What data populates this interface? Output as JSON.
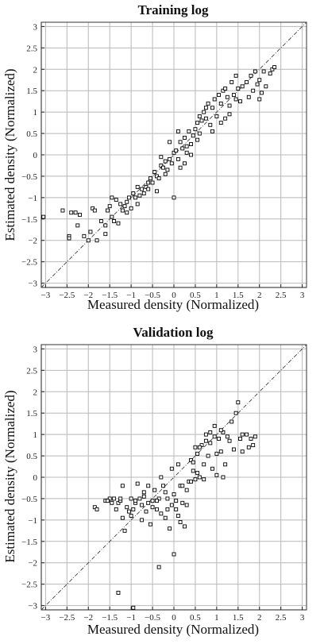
{
  "chart_data": [
    {
      "type": "scatter",
      "title": "Training log",
      "xlabel": "Measured density (Normalized)",
      "ylabel": "Estimated density (Normalized)",
      "xlim": [
        -3.1,
        3.1
      ],
      "ylim": [
        -3.1,
        3.1
      ],
      "xticks": [
        -3,
        -2.5,
        -2,
        -1.5,
        -1,
        -0.5,
        0,
        0.5,
        1,
        1.5,
        2,
        2.5,
        3
      ],
      "yticks": [
        -3,
        -2.5,
        -2,
        -1.5,
        -1,
        -0.5,
        0,
        0.5,
        1,
        1.5,
        2,
        2.5,
        3
      ],
      "x_tick_labels": [
        "−3",
        "−2.5",
        "−2",
        "−1.5",
        "−1",
        "−0.5",
        "0",
        "0.5",
        "1",
        "1.5",
        "2",
        "2.5",
        "3"
      ],
      "y_tick_labels": [
        "−3",
        "−2.5",
        "−2",
        "−1.5",
        "−1",
        "−0.5",
        "0",
        "0.5",
        "1",
        "1.5",
        "2",
        "2.5",
        "3"
      ],
      "grid": true,
      "reference_line": "y = x",
      "marker": "open-square",
      "points": [
        [
          -3.05,
          -1.45
        ],
        [
          -2.6,
          -1.3
        ],
        [
          -2.45,
          -1.9
        ],
        [
          -2.45,
          -1.95
        ],
        [
          -2.3,
          -1.35
        ],
        [
          -2.2,
          -1.4
        ],
        [
          -2.25,
          -1.65
        ],
        [
          -2.1,
          -1.9
        ],
        [
          -2.0,
          -2.0
        ],
        [
          -1.95,
          -1.8
        ],
        [
          -1.9,
          -1.25
        ],
        [
          -1.85,
          -1.3
        ],
        [
          -1.8,
          -2.0
        ],
        [
          -1.7,
          -1.55
        ],
        [
          -1.6,
          -1.85
        ],
        [
          -1.55,
          -1.3
        ],
        [
          -1.5,
          -1.2
        ],
        [
          -1.45,
          -1.45
        ],
        [
          -1.4,
          -1.55
        ],
        [
          -1.35,
          -1.05
        ],
        [
          -1.3,
          -1.6
        ],
        [
          -1.25,
          -1.15
        ],
        [
          -1.2,
          -1.3
        ],
        [
          -1.15,
          -1.2
        ],
        [
          -1.1,
          -1.1
        ],
        [
          -1.05,
          -1.0
        ],
        [
          -1.0,
          -1.25
        ],
        [
          -0.95,
          -0.9
        ],
        [
          -0.9,
          -1.0
        ],
        [
          -0.85,
          -0.75
        ],
        [
          -0.8,
          -0.95
        ],
        [
          -0.75,
          -0.8
        ],
        [
          -0.7,
          -0.9
        ],
        [
          -0.65,
          -0.75
        ],
        [
          -0.6,
          -0.8
        ],
        [
          -0.55,
          -0.55
        ],
        [
          -0.5,
          -0.65
        ],
        [
          -0.45,
          -0.4
        ],
        [
          -0.4,
          -0.5
        ],
        [
          -0.35,
          -0.55
        ],
        [
          -0.3,
          -0.25
        ],
        [
          -0.25,
          -0.3
        ],
        [
          -0.2,
          -0.45
        ],
        [
          -0.15,
          -0.35
        ],
        [
          -0.1,
          -0.1
        ],
        [
          -0.05,
          -0.2
        ],
        [
          0.0,
          -1.0
        ],
        [
          0.0,
          0.05
        ],
        [
          0.05,
          0.1
        ],
        [
          0.1,
          -0.1
        ],
        [
          0.15,
          -0.3
        ],
        [
          0.15,
          0.3
        ],
        [
          0.2,
          0.15
        ],
        [
          0.25,
          0.4
        ],
        [
          0.3,
          0.2
        ],
        [
          0.35,
          0.55
        ],
        [
          0.4,
          0.25
        ],
        [
          0.45,
          0.45
        ],
        [
          0.5,
          0.6
        ],
        [
          0.55,
          0.75
        ],
        [
          0.6,
          0.5
        ],
        [
          0.65,
          0.8
        ],
        [
          0.7,
          1.0
        ],
        [
          0.75,
          0.85
        ],
        [
          0.8,
          1.2
        ],
        [
          0.85,
          0.7
        ],
        [
          0.9,
          1.1
        ],
        [
          0.95,
          1.3
        ],
        [
          1.0,
          0.9
        ],
        [
          1.05,
          1.4
        ],
        [
          1.1,
          1.2
        ],
        [
          1.15,
          1.5
        ],
        [
          1.2,
          0.85
        ],
        [
          1.25,
          1.35
        ],
        [
          1.3,
          1.15
        ],
        [
          1.35,
          1.7
        ],
        [
          1.4,
          1.4
        ],
        [
          1.45,
          1.85
        ],
        [
          1.5,
          1.55
        ],
        [
          1.6,
          1.6
        ],
        [
          1.7,
          1.7
        ],
        [
          1.75,
          1.35
        ],
        [
          1.8,
          1.85
        ],
        [
          1.85,
          1.5
        ],
        [
          1.9,
          1.95
        ],
        [
          1.95,
          1.65
        ],
        [
          2.0,
          1.75
        ],
        [
          2.05,
          1.45
        ],
        [
          2.1,
          1.95
        ],
        [
          2.15,
          1.6
        ],
        [
          2.25,
          1.9
        ],
        [
          2.3,
          2.0
        ],
        [
          2.35,
          2.05
        ],
        [
          2.0,
          1.3
        ],
        [
          1.3,
          0.95
        ],
        [
          0.9,
          0.55
        ],
        [
          0.6,
          0.9
        ],
        [
          0.3,
          0.05
        ],
        [
          -0.2,
          -0.15
        ],
        [
          -0.6,
          -0.65
        ],
        [
          -0.85,
          -1.15
        ],
        [
          -1.1,
          -1.35
        ],
        [
          -1.6,
          -1.65
        ],
        [
          -2.4,
          -1.35
        ],
        [
          -0.3,
          -0.05
        ],
        [
          0.1,
          0.55
        ],
        [
          0.4,
          0.0
        ],
        [
          0.75,
          1.1
        ],
        [
          1.1,
          0.75
        ],
        [
          1.55,
          1.25
        ],
        [
          -0.4,
          -0.85
        ],
        [
          -0.1,
          0.3
        ],
        [
          0.25,
          -0.2
        ],
        [
          0.55,
          0.35
        ],
        [
          1.2,
          1.55
        ],
        [
          1.45,
          1.3
        ],
        [
          -1.45,
          -1.0
        ]
      ]
    },
    {
      "type": "scatter",
      "title": "Validation log",
      "xlabel": "Measured density (Normalized)",
      "ylabel": "Estimated density (Normalized)",
      "xlim": [
        -3.1,
        3.1
      ],
      "ylim": [
        -3.1,
        3.1
      ],
      "xticks": [
        -3,
        -2.5,
        -2,
        -1.5,
        -1,
        -0.5,
        0,
        0.5,
        1,
        1.5,
        2,
        2.5,
        3
      ],
      "yticks": [
        -3,
        -2.5,
        -2,
        -1.5,
        -1,
        -0.5,
        0,
        0.5,
        1,
        1.5,
        2,
        2.5,
        3
      ],
      "x_tick_labels": [
        "−3",
        "−2.5",
        "−2",
        "−1.5",
        "−1",
        "−0.5",
        "0",
        "0.5",
        "1",
        "1.5",
        "2",
        "2.5",
        "3"
      ],
      "y_tick_labels": [
        "−3",
        "−2.5",
        "−2",
        "−1.5",
        "−1",
        "−0.5",
        "0",
        "0.5",
        "1",
        "1.5",
        "2",
        "2.5",
        "3"
      ],
      "grid": true,
      "reference_line": "y = x",
      "marker": "open-square",
      "points": [
        [
          -1.85,
          -0.7
        ],
        [
          -1.8,
          -0.75
        ],
        [
          -1.6,
          -0.55
        ],
        [
          -1.5,
          -0.5
        ],
        [
          -1.45,
          -0.6
        ],
        [
          -1.4,
          -0.5
        ],
        [
          -1.35,
          -0.75
        ],
        [
          -1.3,
          -0.6
        ],
        [
          -1.25,
          -0.55
        ],
        [
          -1.2,
          -0.2
        ],
        [
          -1.2,
          -0.95
        ],
        [
          -1.15,
          -1.25
        ],
        [
          -1.1,
          -0.7
        ],
        [
          -1.05,
          -0.8
        ],
        [
          -1.0,
          -0.5
        ],
        [
          -0.95,
          -0.75
        ],
        [
          -0.9,
          -0.6
        ],
        [
          -0.85,
          -0.15
        ],
        [
          -0.8,
          -0.5
        ],
        [
          -0.75,
          -1.0
        ],
        [
          -0.7,
          -0.45
        ],
        [
          -0.65,
          -0.8
        ],
        [
          -0.6,
          -0.6
        ],
        [
          -0.55,
          -1.1
        ],
        [
          -0.5,
          -0.55
        ],
        [
          -0.45,
          -0.3
        ],
        [
          -0.4,
          -0.75
        ],
        [
          -0.35,
          -0.5
        ],
        [
          -0.3,
          -0.85
        ],
        [
          -0.25,
          -0.2
        ],
        [
          -0.2,
          -0.95
        ],
        [
          -0.15,
          -0.5
        ],
        [
          -0.1,
          -1.2
        ],
        [
          -0.05,
          -0.65
        ],
        [
          0.0,
          -0.4
        ],
        [
          0.05,
          -0.75
        ],
        [
          0.1,
          -0.9
        ],
        [
          0.15,
          -0.2
        ],
        [
          0.2,
          -0.6
        ],
        [
          0.25,
          -1.15
        ],
        [
          0.3,
          -0.3
        ],
        [
          0.35,
          -0.1
        ],
        [
          0.4,
          0.4
        ],
        [
          0.45,
          0.15
        ],
        [
          0.5,
          -0.05
        ],
        [
          0.55,
          0.55
        ],
        [
          0.6,
          0.0
        ],
        [
          0.65,
          0.75
        ],
        [
          0.7,
          0.3
        ],
        [
          0.75,
          1.0
        ],
        [
          0.8,
          0.5
        ],
        [
          0.85,
          0.8
        ],
        [
          0.9,
          0.2
        ],
        [
          0.95,
          1.2
        ],
        [
          1.0,
          0.05
        ],
        [
          1.05,
          0.9
        ],
        [
          1.1,
          0.6
        ],
        [
          1.15,
          1.05
        ],
        [
          1.2,
          0.3
        ],
        [
          1.3,
          0.85
        ],
        [
          1.35,
          1.3
        ],
        [
          1.45,
          1.5
        ],
        [
          1.5,
          1.75
        ],
        [
          1.55,
          0.9
        ],
        [
          1.6,
          0.6
        ],
        [
          1.7,
          1.0
        ],
        [
          1.75,
          0.7
        ],
        [
          1.8,
          0.9
        ],
        [
          1.85,
          0.75
        ],
        [
          1.9,
          0.95
        ],
        [
          -1.3,
          -2.7
        ],
        [
          -0.95,
          -3.05
        ],
        [
          -0.35,
          -2.1
        ],
        [
          0.0,
          -1.8
        ],
        [
          -0.3,
          -0.0
        ],
        [
          -0.05,
          0.2
        ],
        [
          0.1,
          0.3
        ],
        [
          0.45,
          0.35
        ],
        [
          0.6,
          0.7
        ],
        [
          0.85,
          1.05
        ],
        [
          1.25,
          0.95
        ],
        [
          1.4,
          0.65
        ],
        [
          1.6,
          1.0
        ],
        [
          -0.6,
          -0.2
        ],
        [
          -0.9,
          -0.55
        ],
        [
          -1.55,
          -0.55
        ],
        [
          -0.5,
          -0.7
        ],
        [
          -0.2,
          -0.35
        ],
        [
          0.05,
          -0.55
        ],
        [
          0.3,
          -0.65
        ],
        [
          0.55,
          0.1
        ],
        [
          0.75,
          0.85
        ],
        [
          1.0,
          0.55
        ],
        [
          1.15,
          0.0
        ],
        [
          -0.75,
          -0.65
        ],
        [
          -1.0,
          -0.9
        ],
        [
          -0.15,
          -0.75
        ],
        [
          0.2,
          -0.2
        ],
        [
          0.4,
          -0.1
        ],
        [
          0.7,
          -0.05
        ],
        [
          0.95,
          0.95
        ],
        [
          1.1,
          1.1
        ],
        [
          -0.4,
          -0.55
        ],
        [
          -1.25,
          -0.5
        ],
        [
          -0.7,
          -0.35
        ],
        [
          0.15,
          -1.05
        ],
        [
          0.5,
          0.7
        ]
      ]
    }
  ]
}
